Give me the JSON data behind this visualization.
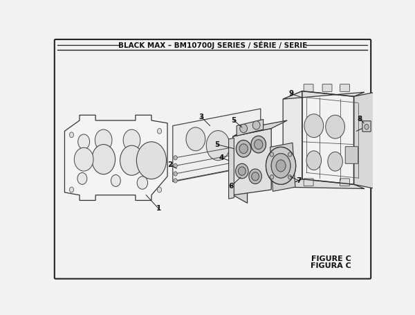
{
  "title": "BLACK MAX – BM10700J SERIES / SÉRIE / SERIE",
  "figure_label": "FIGURE C",
  "figura_label": "FIGURA C",
  "bg_color": "#f2f2f2",
  "border_color": "#222222",
  "line_color": "#222222"
}
